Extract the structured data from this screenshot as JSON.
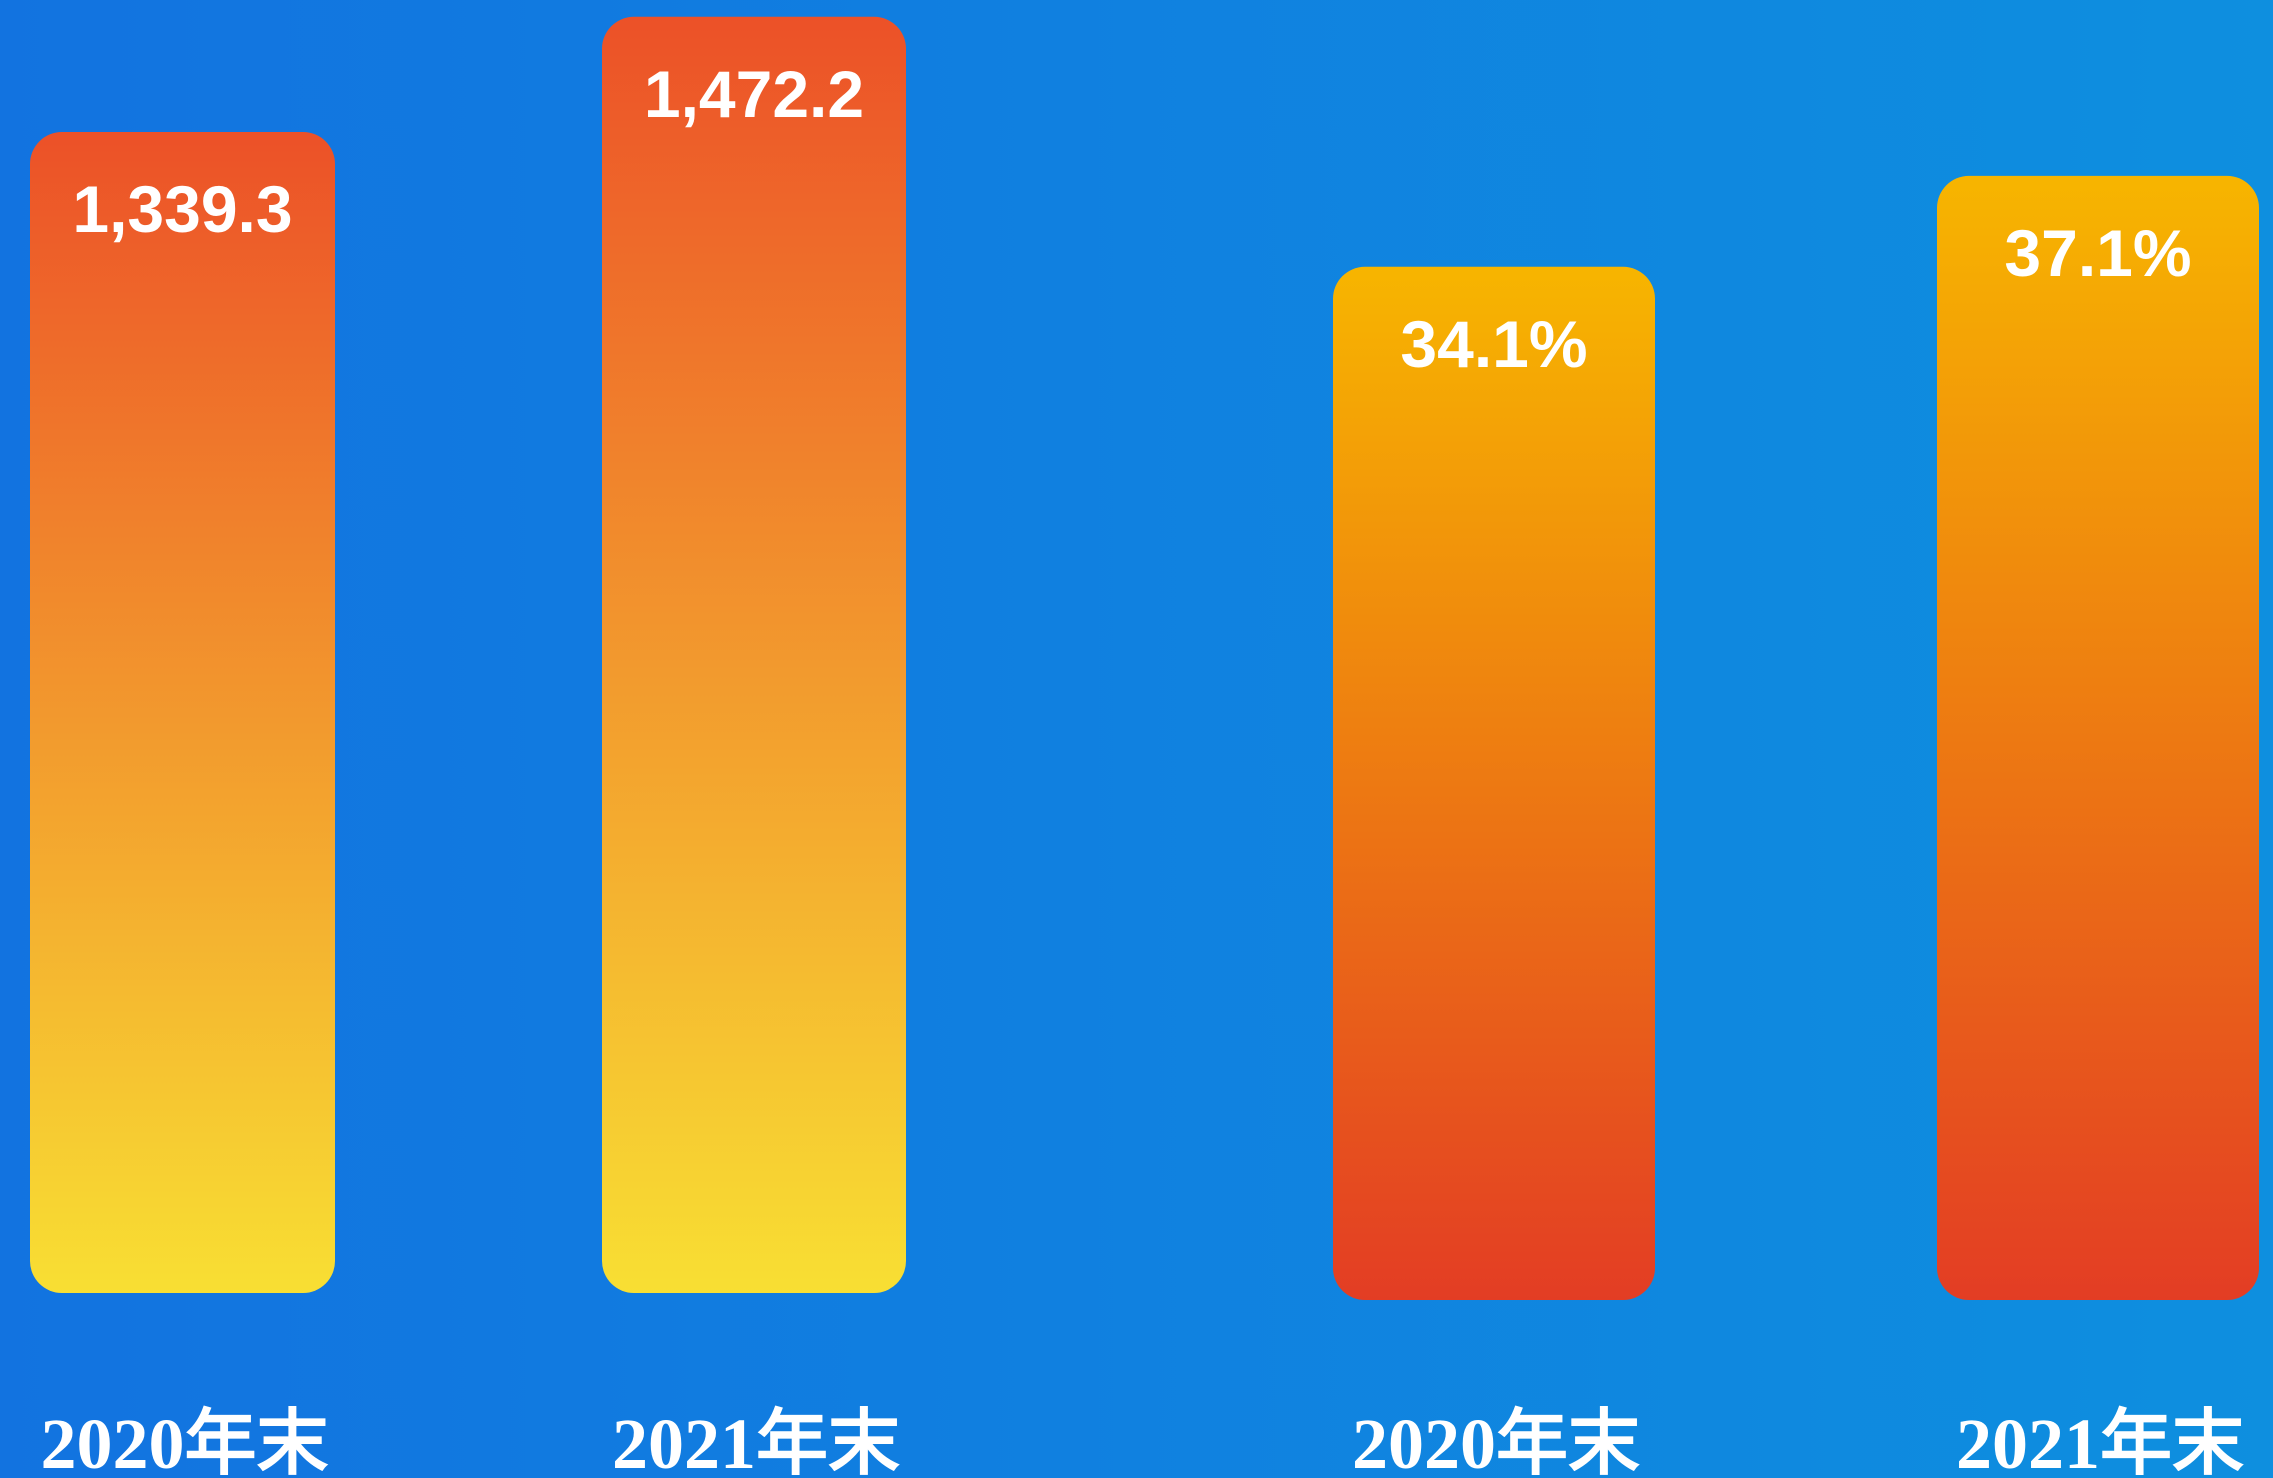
{
  "chart_data": [
    {
      "type": "bar",
      "categories": [
        "2020年末",
        "2021年末"
      ],
      "values": [
        1339.3,
        1472.2
      ],
      "value_labels": [
        "1,339.3",
        "1,472.2"
      ],
      "ylim": [
        0,
        1480
      ],
      "gradient": [
        "#ec5128",
        "#f8df33"
      ]
    },
    {
      "type": "bar",
      "categories": [
        "2020年末",
        "2021年末"
      ],
      "values": [
        34.1,
        37.1
      ],
      "value_labels": [
        "34.1%",
        "37.1%"
      ],
      "ylim": [
        0,
        40
      ],
      "gradient": [
        "#f7b500",
        "#e33d24"
      ]
    }
  ]
}
